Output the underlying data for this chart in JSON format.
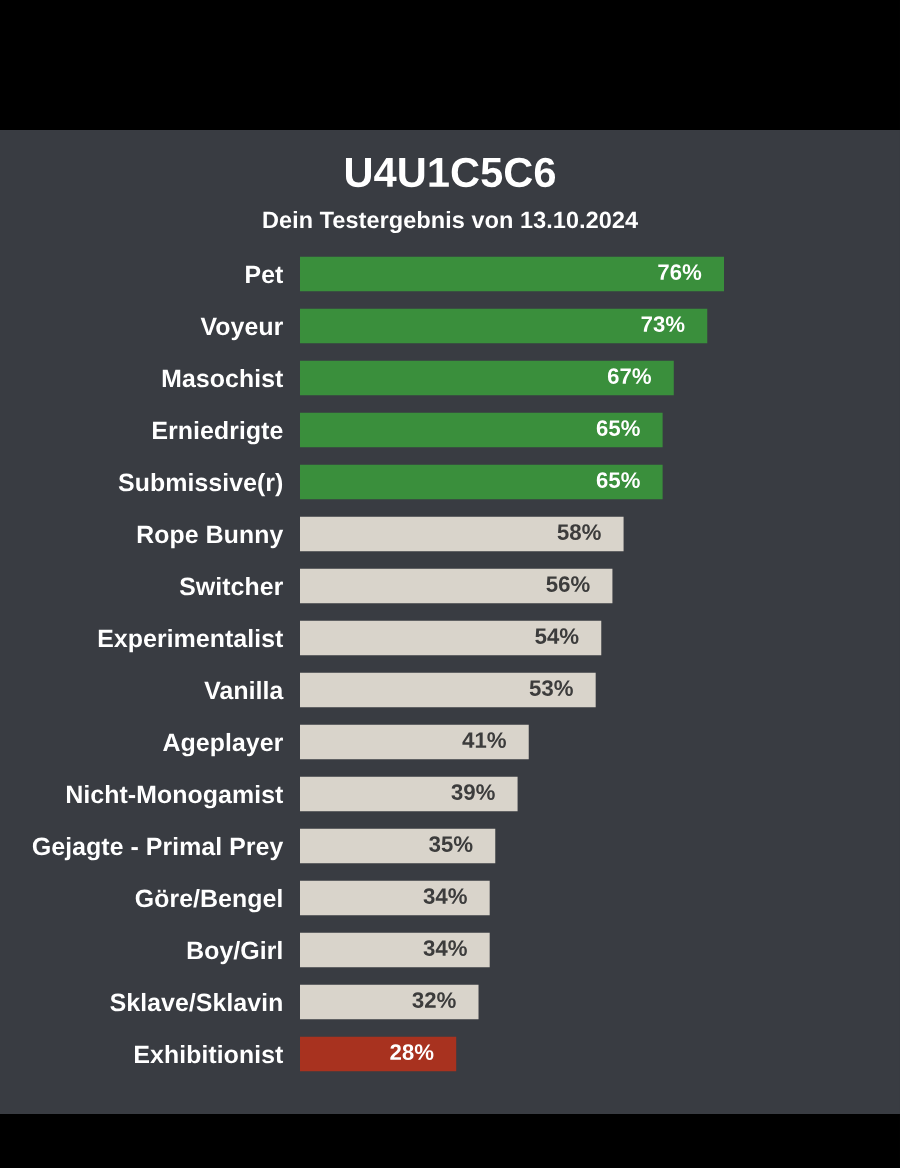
{
  "chart_data": {
    "type": "bar",
    "orientation": "horizontal",
    "title": "U4U1C5C6",
    "subtitle": "Dein Testergebnis von 13.10.2024",
    "categories": [
      "Pet",
      "Voyeur",
      "Masochist",
      "Erniedrigte",
      "Submissive(r)",
      "Rope Bunny",
      "Switcher",
      "Experimentalist",
      "Vanilla",
      "Ageplayer",
      "Nicht-Monogamist",
      "Gejagte - Primal Prey",
      "Göre/Bengel",
      "Boy/Girl",
      "Sklave/Sklavin",
      "Exhibitionist"
    ],
    "values": [
      76,
      73,
      67,
      65,
      65,
      58,
      56,
      54,
      53,
      41,
      39,
      35,
      34,
      34,
      32,
      28
    ],
    "colors": [
      "#3a8f3c",
      "#3a8f3c",
      "#3a8f3c",
      "#3a8f3c",
      "#3a8f3c",
      "#d9d4cb",
      "#d9d4cb",
      "#d9d4cb",
      "#d9d4cb",
      "#d9d4cb",
      "#d9d4cb",
      "#d9d4cb",
      "#d9d4cb",
      "#d9d4cb",
      "#d9d4cb",
      "#a8321f"
    ],
    "value_labels": [
      "76%",
      "73%",
      "67%",
      "65%",
      "65%",
      "58%",
      "56%",
      "54%",
      "53%",
      "41%",
      "39%",
      "35%",
      "34%",
      "34%",
      "32%",
      "28%"
    ],
    "grid": false,
    "legend": false
  }
}
